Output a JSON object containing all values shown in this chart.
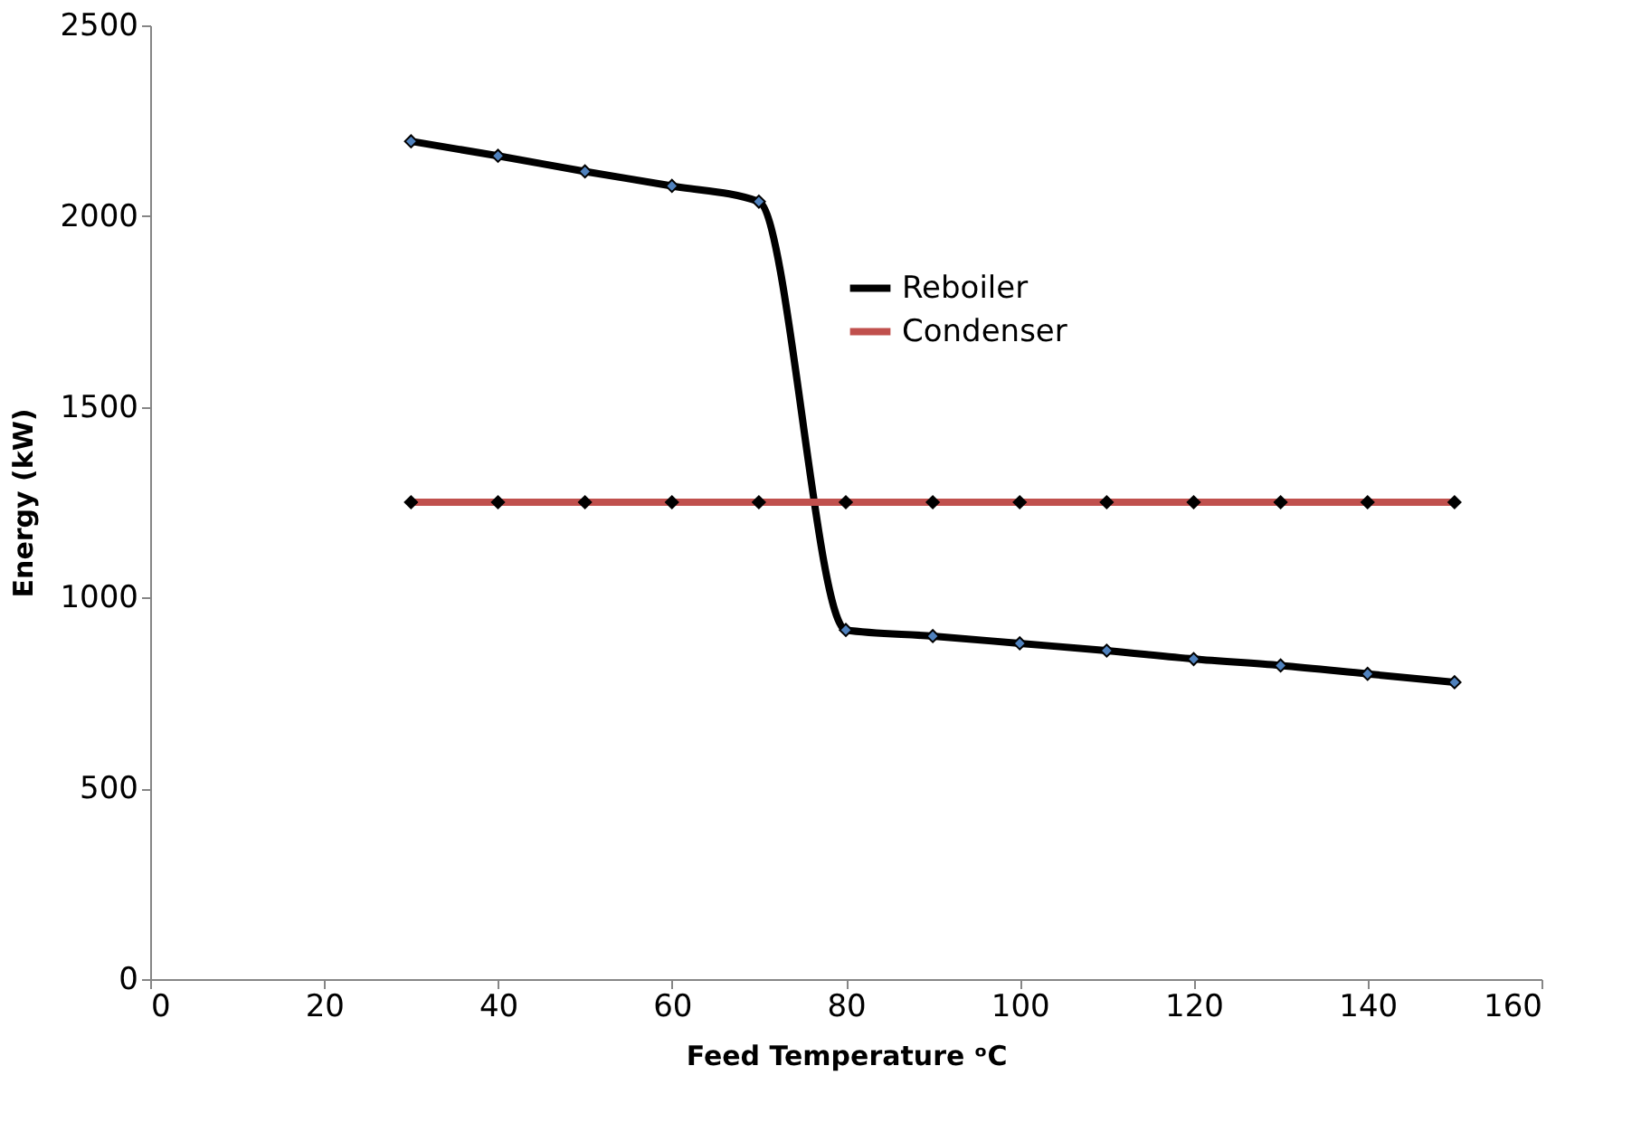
{
  "chart_data": {
    "type": "line",
    "xlabel": "Feed Temperature ᵒC",
    "ylabel": "Energy (kW)",
    "x": [
      30,
      40,
      50,
      60,
      70,
      80,
      90,
      100,
      110,
      120,
      130,
      140,
      150
    ],
    "series": [
      {
        "name": "Reboiler",
        "color": "#000000",
        "values": [
          2196,
          2158,
          2117,
          2079,
          2038,
          915,
          899,
          880,
          861,
          839,
          822,
          800,
          778
        ]
      },
      {
        "name": "Condenser",
        "color": "#c0504d",
        "values": [
          1250,
          1250,
          1250,
          1250,
          1250,
          1250,
          1250,
          1250,
          1250,
          1250,
          1250,
          1250,
          1250
        ]
      }
    ],
    "xlim": [
      0,
      160
    ],
    "xticks": [
      0,
      20,
      40,
      60,
      80,
      100,
      120,
      140,
      160
    ],
    "ylim": [
      0,
      2500
    ],
    "yticks": [
      0,
      500,
      1000,
      1500,
      2000,
      2500
    ],
    "grid": false,
    "legend": "top",
    "marker": "diamond",
    "line_style": "solid"
  }
}
